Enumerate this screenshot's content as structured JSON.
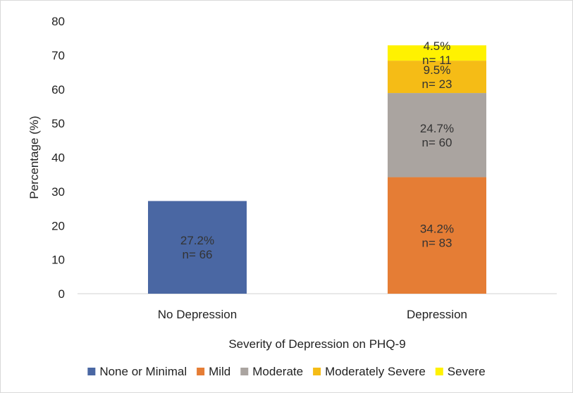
{
  "chart_data": {
    "type": "bar",
    "stacked": true,
    "categories": [
      "No Depression",
      "Depression"
    ],
    "series": [
      {
        "name": "None or Minimal",
        "color": "#4a67a3",
        "values": [
          27.2,
          0
        ],
        "labels": [
          [
            "27.2%",
            "n= 66"
          ],
          null
        ]
      },
      {
        "name": "Mild",
        "color": "#e57d35",
        "values": [
          0,
          34.2
        ],
        "labels": [
          null,
          [
            "34.2%",
            "n= 83"
          ]
        ]
      },
      {
        "name": "Moderate",
        "color": "#aaa4a0",
        "values": [
          0,
          24.7
        ],
        "labels": [
          null,
          [
            "24.7%",
            "n= 60"
          ]
        ]
      },
      {
        "name": "Moderately Severe",
        "color": "#f5bc16",
        "values": [
          0,
          9.5
        ],
        "labels": [
          null,
          [
            "9.5%",
            "n= 23"
          ]
        ]
      },
      {
        "name": "Severe",
        "color": "#fff200",
        "values": [
          0,
          4.5
        ],
        "labels": [
          null,
          [
            "4.5%",
            "n= 11"
          ]
        ]
      }
    ],
    "title": "",
    "xlabel": "Severity of Depression on PHQ-9",
    "ylabel": "Percentage (%)",
    "ylim": [
      0,
      80
    ],
    "yticks": [
      0,
      10,
      20,
      30,
      40,
      50,
      60,
      70,
      80
    ],
    "grid": false,
    "legend_position": "bottom"
  }
}
